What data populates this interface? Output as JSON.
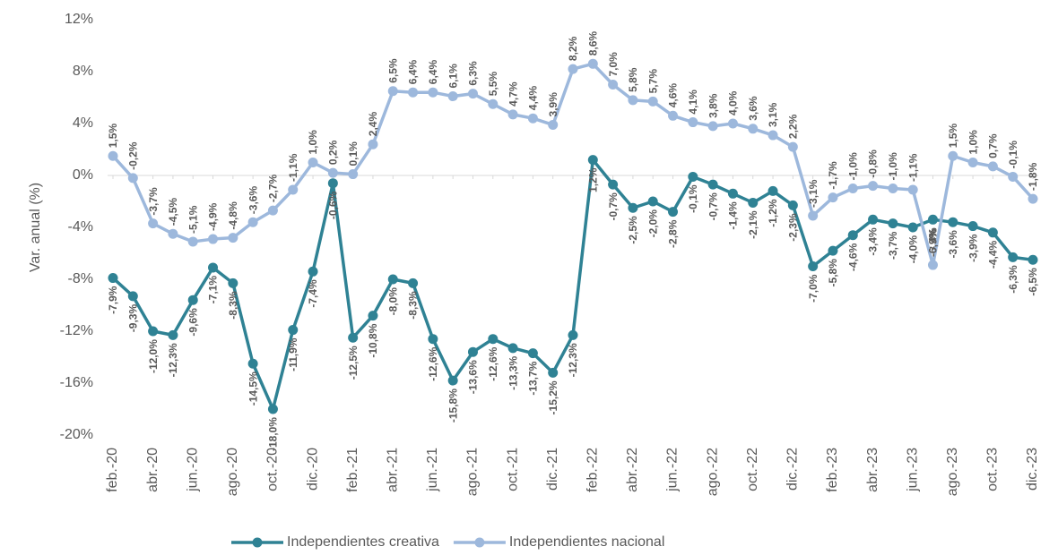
{
  "chart_data": {
    "type": "line",
    "y_label": "Var. anual (%)",
    "categories": [
      "feb.-20",
      null,
      "abr.-20",
      null,
      "jun.-20",
      null,
      "ago.-20",
      null,
      "oct.-20",
      null,
      "dic.-20",
      null,
      "feb.-21",
      null,
      "abr.-21",
      null,
      "jun.-21",
      null,
      "ago.-21",
      null,
      "oct.-21",
      null,
      "dic.-21",
      null,
      "feb.-22",
      null,
      "abr.-22",
      null,
      "jun.-22",
      null,
      "ago.-22",
      null,
      "oct.-22",
      null,
      "dic.-22",
      null,
      "feb.-23",
      null,
      "abr.-23",
      null,
      "jun.-23",
      null,
      "ago.-23",
      null,
      "oct.-23",
      null,
      "dic.-23"
    ],
    "ylim": [
      -20,
      12
    ],
    "yticks": [
      {
        "value": -20,
        "label": "-20%"
      },
      {
        "value": -16,
        "label": "-16%"
      },
      {
        "value": -12,
        "label": "-12%"
      },
      {
        "value": -8,
        "label": "-8%"
      },
      {
        "value": -4,
        "label": "-4%"
      },
      {
        "value": 0,
        "label": "0%"
      },
      {
        "value": 4,
        "label": "4%"
      },
      {
        "value": 8,
        "label": "8%"
      },
      {
        "value": 12,
        "label": "12%"
      }
    ],
    "legend": "bottom",
    "series": [
      {
        "name": "Independientes creativa",
        "color": "#2f8294",
        "label_side": "below",
        "values": [
          -7.9,
          -9.3,
          -12.0,
          -12.3,
          -9.6,
          -7.1,
          -8.3,
          -14.5,
          -18.0,
          -11.9,
          -7.4,
          -0.6,
          -12.5,
          -10.8,
          -8.0,
          -8.3,
          -12.6,
          -15.8,
          -13.6,
          -12.6,
          -13.3,
          -13.7,
          -15.2,
          -12.3,
          1.2,
          -0.7,
          -2.5,
          -2.0,
          -2.8,
          -0.1,
          -0.7,
          -1.4,
          -2.1,
          -1.2,
          -2.3,
          -7.0,
          -5.8,
          -4.6,
          -3.4,
          -3.7,
          -4.0,
          -3.4,
          -3.6,
          -3.9,
          -4.4,
          -6.3,
          -6.5
        ],
        "value_labels": [
          "-7,9%",
          "-9,3%",
          "-12,0%",
          "-12,3%",
          "-9,6%",
          "-7,1%",
          "-8,3%",
          "-14,5%",
          "-18,0%",
          "-11,9%",
          "-7,4%",
          "-0,6%",
          "-12,5%",
          "-10,8%",
          "-8,0%",
          "-8,3%",
          "-12,6%",
          "-15,8%",
          "-13,6%",
          "-12,6%",
          "-13,3%",
          "-13,7%",
          "-15,2%",
          "-12,3%",
          "1,2%",
          "-0,7%",
          "-2,5%",
          "-2,0%",
          "-2,8%",
          "-0,1%",
          "-0,7%",
          "-1,4%",
          "-2,1%",
          "-1,2%",
          "-2,3%",
          "-7,0%",
          "-5,8%",
          "-4,6%",
          "-3,4%",
          "-3,7%",
          "-4,0%",
          "-3,4%",
          "-3,6%",
          "-3,9%",
          "-4,4%",
          "-6,3%",
          "-6,5%"
        ]
      },
      {
        "name": "Independientes nacional",
        "color": "#9db8dc",
        "label_side": "above",
        "values": [
          1.5,
          -0.2,
          -3.7,
          -4.5,
          -5.1,
          -4.9,
          -4.8,
          -3.6,
          -2.7,
          -1.1,
          1.0,
          0.2,
          0.1,
          2.4,
          6.5,
          6.4,
          6.4,
          6.1,
          6.3,
          5.5,
          4.7,
          4.4,
          3.9,
          8.2,
          8.6,
          7.0,
          5.8,
          5.7,
          4.6,
          4.1,
          3.8,
          4.0,
          3.6,
          3.1,
          2.2,
          -3.1,
          -1.7,
          -1.0,
          -0.8,
          -1.0,
          -1.1,
          -6.9,
          1.5,
          1.0,
          0.7,
          -0.1,
          -1.8
        ],
        "value_labels": [
          "1,5%",
          "-0,2%",
          "-3,7%",
          "-4,5%",
          "-5,1%",
          "-4,9%",
          "-4,8%",
          "-3,6%",
          "-2,7%",
          "-1,1%",
          "1,0%",
          "0,2%",
          "0,1%",
          "2,4%",
          "6,5%",
          "6,4%",
          "6,4%",
          "6,1%",
          "6,3%",
          "5,5%",
          "4,7%",
          "4,4%",
          "3,9%",
          "8,2%",
          "8,6%",
          "7,0%",
          "5,8%",
          "5,7%",
          "4,6%",
          "4,1%",
          "3,8%",
          "4,0%",
          "3,6%",
          "3,1%",
          "2,2%",
          "-3,1%",
          "-1,7%",
          "-1,0%",
          "-0,8%",
          "-1,0%",
          "-1,1%",
          "-6,9%",
          "1,5%",
          "1,0%",
          "0,7%",
          "-0,1%",
          "-1,8%"
        ]
      }
    ]
  }
}
